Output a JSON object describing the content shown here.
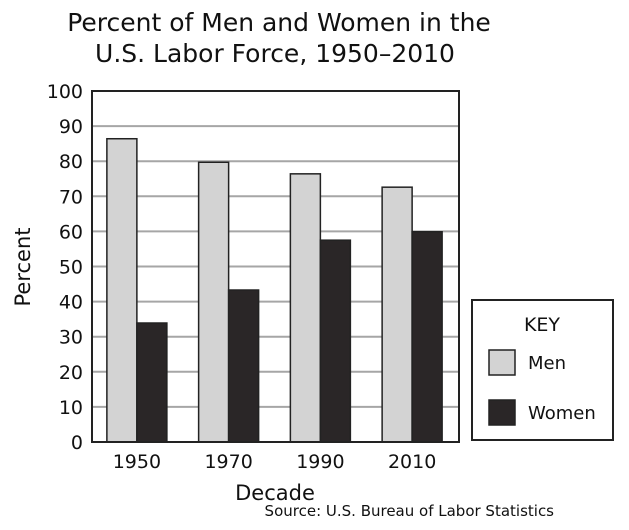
{
  "chart_data": {
    "type": "bar",
    "title_lines": [
      "Percent of Men and Women in the",
      "U.S. Labor Force, 1950–2010"
    ],
    "xlabel": "Decade",
    "ylabel": "Percent",
    "categories": [
      "1950",
      "1970",
      "1990",
      "2010"
    ],
    "series": [
      {
        "name": "Men",
        "values": [
          86.4,
          79.7,
          76.4,
          72.6
        ],
        "color": "#d3d3d3"
      },
      {
        "name": "Women",
        "values": [
          33.9,
          43.3,
          57.5,
          59.9
        ],
        "color": "#2a2627"
      }
    ],
    "ylim": [
      0,
      100
    ],
    "yticks": [
      "0",
      "10",
      "20",
      "30",
      "40",
      "50",
      "60",
      "70",
      "80",
      "90",
      "100"
    ],
    "grid": true,
    "legend": {
      "title": "KEY",
      "placement": "right"
    },
    "source": "Source: U.S. Bureau of Labor Statistics"
  }
}
